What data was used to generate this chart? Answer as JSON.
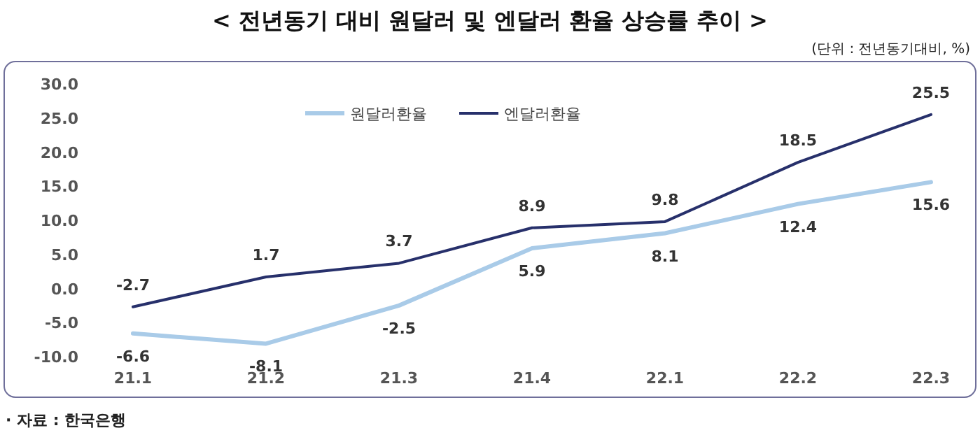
{
  "chart_data": {
    "type": "line",
    "title": "< 전년동기 대비 원달러 및 엔달러 환율 상승률 추이 >",
    "subtitle": "(단위 : 전년동기대비, %)",
    "annotations": [
      "· 자료 : 한국은행"
    ],
    "categories": [
      "21.1",
      "21.2",
      "21.3",
      "21.4",
      "22.1",
      "22.2",
      "22.3"
    ],
    "series": [
      {
        "name": "원달러환율",
        "color": "#a9cbe8",
        "values": [
          -6.6,
          -8.1,
          -2.5,
          5.9,
          8.1,
          12.4,
          15.6
        ]
      },
      {
        "name": "엔달러환율",
        "color": "#27306b",
        "values": [
          -2.7,
          1.7,
          3.7,
          8.9,
          9.8,
          18.5,
          25.5
        ]
      }
    ],
    "ylim": [
      -10,
      30
    ],
    "yticks": [
      {
        "value": 30,
        "label": "30.0"
      },
      {
        "value": 25,
        "label": "25.0"
      },
      {
        "value": 20,
        "label": "20.0"
      },
      {
        "value": 15,
        "label": "15.0"
      },
      {
        "value": 10,
        "label": "10.0"
      },
      {
        "value": 5,
        "label": "5.0"
      },
      {
        "value": 0,
        "label": "0.0"
      },
      {
        "value": -5,
        "label": "-5.0"
      },
      {
        "value": -10,
        "label": "-10.0"
      }
    ],
    "data_labels": true,
    "legend": "top",
    "grid": false,
    "marker": "none",
    "line_style": "solid"
  }
}
